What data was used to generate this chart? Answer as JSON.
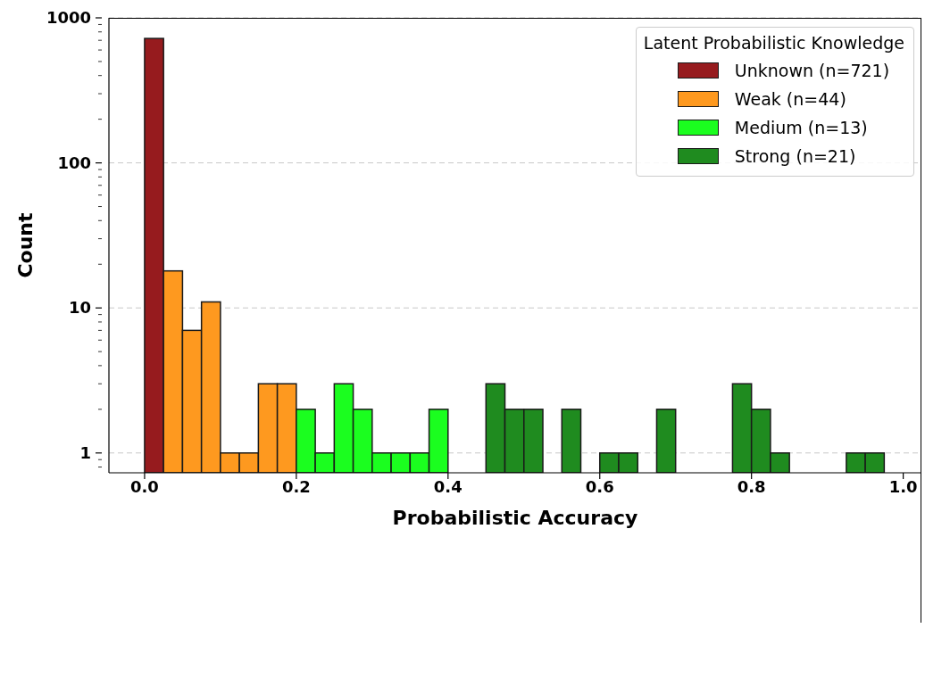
{
  "chart_data": {
    "type": "histogram",
    "xlabel": "Probabilistic Accuracy",
    "ylabel": "Count",
    "legend_title": "Latent Probabilistic Knowledge",
    "bins": [
      0,
      0.025,
      0.05,
      0.075,
      0.1,
      0.125,
      0.15,
      0.175,
      0.2,
      0.225,
      0.25,
      0.275,
      0.3,
      0.325,
      0.35,
      0.375,
      0.4,
      0.425,
      0.45,
      0.475,
      0.5,
      0.525,
      0.55,
      0.575,
      0.6,
      0.625,
      0.65,
      0.675,
      0.7,
      0.725,
      0.75,
      0.775,
      0.8,
      0.825,
      0.85,
      0.875,
      0.9,
      0.925,
      0.95,
      0.975
    ],
    "series": [
      {
        "name": "Unknown (n=721)",
        "color": "#961b1e",
        "values": [
          721,
          null,
          null,
          null,
          null,
          null,
          null,
          null,
          null,
          null,
          null,
          null,
          null,
          null,
          null,
          null,
          null,
          null,
          null,
          null,
          null,
          null,
          null,
          null,
          null,
          null,
          null,
          null,
          null,
          null,
          null,
          null,
          null,
          null,
          null,
          null,
          null,
          null,
          null
        ]
      },
      {
        "name": "Weak (n=44)",
        "color": "#fe991f",
        "values": [
          null,
          18,
          7,
          11,
          1,
          1,
          3,
          3,
          null,
          null,
          null,
          null,
          null,
          null,
          null,
          null,
          null,
          null,
          null,
          null,
          null,
          null,
          null,
          null,
          null,
          null,
          null,
          null,
          null,
          null,
          null,
          null,
          null,
          null,
          null,
          null,
          null,
          null,
          null
        ]
      },
      {
        "name": "Medium (n=13)",
        "color": "#1bfe1f",
        "values": [
          null,
          null,
          null,
          null,
          null,
          null,
          null,
          null,
          2,
          1,
          3,
          2,
          1,
          1,
          1,
          2,
          null,
          null,
          null,
          null,
          null,
          null,
          null,
          null,
          null,
          null,
          null,
          null,
          null,
          null,
          null,
          null,
          null,
          null,
          null,
          null,
          null,
          null,
          null
        ]
      },
      {
        "name": "Strong (n=21)",
        "color": "#1f8b1f",
        "values": [
          null,
          null,
          null,
          null,
          null,
          null,
          null,
          null,
          null,
          null,
          null,
          null,
          null,
          null,
          null,
          null,
          null,
          null,
          3,
          2,
          2,
          null,
          2,
          null,
          1,
          1,
          null,
          2,
          null,
          null,
          null,
          3,
          2,
          1,
          null,
          null,
          null,
          1,
          1
        ]
      }
    ],
    "log": "y",
    "xlim": [
      -0.047,
      1.024
    ],
    "ylim": [
      0.73,
      1000
    ],
    "xticks": [
      {
        "value": 0,
        "label": "0.0"
      },
      {
        "value": 0.2,
        "label": "0.2"
      },
      {
        "value": 0.4,
        "label": "0.4"
      },
      {
        "value": 0.6,
        "label": "0.6"
      },
      {
        "value": 0.8,
        "label": "0.8"
      },
      {
        "value": 1,
        "label": "1.0"
      }
    ],
    "yticks": [
      {
        "value": 0.8,
        "label": null
      },
      {
        "value": 0.9,
        "label": null
      },
      1,
      {
        "value": 2,
        "label": null
      },
      {
        "value": 3,
        "label": null
      },
      {
        "value": 4,
        "label": null
      },
      {
        "value": 5,
        "label": null
      },
      {
        "value": 6,
        "label": null
      },
      {
        "value": 7,
        "label": null
      },
      {
        "value": 8,
        "label": null
      },
      {
        "value": 9,
        "label": null
      },
      10,
      {
        "value": 20,
        "label": null
      },
      {
        "value": 30,
        "label": null
      },
      {
        "value": 40,
        "label": null
      },
      {
        "value": 50,
        "label": null
      },
      {
        "value": 60,
        "label": null
      },
      {
        "value": 70,
        "label": null
      },
      {
        "value": 80,
        "label": null
      },
      {
        "value": 90,
        "label": null
      },
      100,
      {
        "value": 200,
        "label": null
      },
      {
        "value": 300,
        "label": null
      },
      {
        "value": 400,
        "label": null
      },
      {
        "value": 500,
        "label": null
      },
      {
        "value": 600,
        "label": null
      },
      {
        "value": 700,
        "label": null
      },
      {
        "value": 800,
        "label": null
      },
      {
        "value": 900,
        "label": null
      },
      1000
    ],
    "grid": "y",
    "legend": "top right"
  }
}
